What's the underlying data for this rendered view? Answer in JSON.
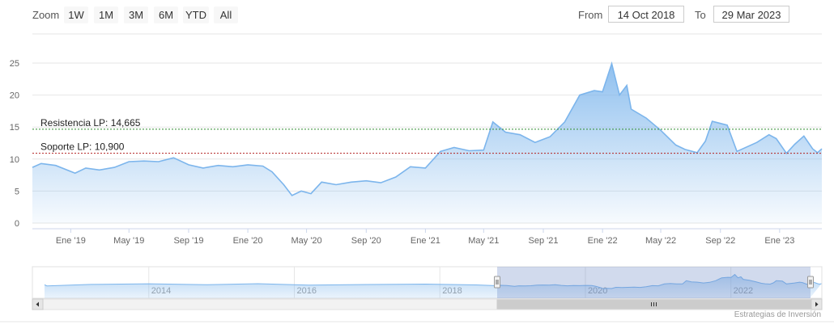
{
  "toolbar": {
    "zoom_label": "Zoom",
    "buttons": [
      "1W",
      "1M",
      "3M",
      "6M",
      "YTD",
      "All"
    ],
    "from_label": "From",
    "from_value": "14 Oct 2018",
    "to_label": "To",
    "to_value": "29 Mar 2023"
  },
  "credit": "Estrategias de Inversión",
  "chart_data": {
    "type": "area",
    "title": "",
    "xlabel": "",
    "ylabel": "",
    "ylim": [
      0,
      25
    ],
    "grid": true,
    "y_ticks": [
      "0",
      "5",
      "10",
      "15",
      "20",
      "25"
    ],
    "x_ticks": [
      "Ene '19",
      "May '19",
      "Sep '19",
      "Ene '20",
      "May '20",
      "Sep '20",
      "Ene '21",
      "May '21",
      "Sep '21",
      "Ene '22",
      "May '22",
      "Sep '22",
      "Ene '23"
    ],
    "x_tick_dates": [
      "2019-01-01",
      "2019-05-01",
      "2019-09-01",
      "2020-01-01",
      "2020-05-01",
      "2020-09-01",
      "2021-01-01",
      "2021-05-01",
      "2021-09-01",
      "2022-01-01",
      "2022-05-01",
      "2022-09-01",
      "2023-01-01"
    ],
    "x_range": [
      "2018-10-14",
      "2023-03-29"
    ],
    "series": [
      {
        "values": [
          [
            "2018-10-14",
            8.7
          ],
          [
            "2018-11-01",
            9.3
          ],
          [
            "2018-12-01",
            9.0
          ],
          [
            "2019-01-10",
            7.8
          ],
          [
            "2019-02-01",
            8.6
          ],
          [
            "2019-03-01",
            8.3
          ],
          [
            "2019-04-01",
            8.7
          ],
          [
            "2019-05-01",
            9.6
          ],
          [
            "2019-06-01",
            9.7
          ],
          [
            "2019-07-01",
            9.6
          ],
          [
            "2019-08-01",
            10.2
          ],
          [
            "2019-09-01",
            9.1
          ],
          [
            "2019-10-01",
            8.6
          ],
          [
            "2019-11-01",
            9.0
          ],
          [
            "2019-12-01",
            8.8
          ],
          [
            "2020-01-01",
            9.1
          ],
          [
            "2020-02-01",
            8.9
          ],
          [
            "2020-02-20",
            8.0
          ],
          [
            "2020-03-15",
            6.0
          ],
          [
            "2020-04-01",
            4.3
          ],
          [
            "2020-04-20",
            5.0
          ],
          [
            "2020-05-10",
            4.6
          ],
          [
            "2020-06-01",
            6.4
          ],
          [
            "2020-07-01",
            6.0
          ],
          [
            "2020-08-01",
            6.4
          ],
          [
            "2020-09-01",
            6.6
          ],
          [
            "2020-10-01",
            6.3
          ],
          [
            "2020-11-01",
            7.2
          ],
          [
            "2020-12-01",
            8.8
          ],
          [
            "2021-01-01",
            8.6
          ],
          [
            "2021-02-01",
            11.2
          ],
          [
            "2021-03-01",
            11.8
          ],
          [
            "2021-04-01",
            11.3
          ],
          [
            "2021-05-01",
            11.4
          ],
          [
            "2021-05-20",
            15.8
          ],
          [
            "2021-06-15",
            14.2
          ],
          [
            "2021-07-15",
            13.8
          ],
          [
            "2021-08-15",
            12.6
          ],
          [
            "2021-09-15",
            13.5
          ],
          [
            "2021-10-15",
            15.8
          ],
          [
            "2021-11-15",
            20.0
          ],
          [
            "2021-12-15",
            20.7
          ],
          [
            "2022-01-01",
            20.5
          ],
          [
            "2022-01-20",
            24.9
          ],
          [
            "2022-02-05",
            20.0
          ],
          [
            "2022-02-20",
            21.5
          ],
          [
            "2022-03-01",
            17.8
          ],
          [
            "2022-04-01",
            16.4
          ],
          [
            "2022-05-01",
            14.5
          ],
          [
            "2022-06-01",
            12.2
          ],
          [
            "2022-06-20",
            11.5
          ],
          [
            "2022-07-15",
            11.0
          ],
          [
            "2022-08-01",
            12.8
          ],
          [
            "2022-08-15",
            15.9
          ],
          [
            "2022-09-15",
            15.3
          ],
          [
            "2022-10-05",
            11.2
          ],
          [
            "2022-11-15",
            12.6
          ],
          [
            "2022-12-10",
            13.8
          ],
          [
            "2022-12-25",
            13.2
          ],
          [
            "2023-01-15",
            10.9
          ],
          [
            "2023-02-01",
            12.3
          ],
          [
            "2023-02-20",
            13.6
          ],
          [
            "2023-03-10",
            11.6
          ],
          [
            "2023-03-20",
            11.0
          ],
          [
            "2023-03-29",
            11.6
          ]
        ]
      }
    ],
    "plot_lines": [
      {
        "label": "Resistencia LP: 14,665",
        "value": 14.665,
        "color": "#2e8b2e"
      },
      {
        "label": "Soporte LP: 10,900",
        "value": 10.9,
        "color": "#b22222"
      }
    ],
    "navigator": {
      "x_ticks": [
        "2014",
        "2016",
        "2018",
        "2020",
        "2022"
      ],
      "x_tick_years": [
        2014,
        2016,
        2018,
        2020,
        2022
      ],
      "range": [
        2012.4,
        2023.25
      ],
      "selection": [
        "2018-10-14",
        "2023-03-29"
      ]
    }
  }
}
